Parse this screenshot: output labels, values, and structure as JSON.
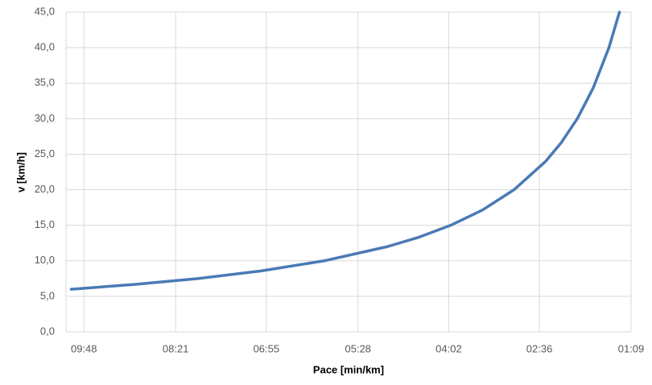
{
  "chart_data": {
    "type": "line",
    "x_label": "Pace [min/km]",
    "y_label": "v [km/h]",
    "x": [
      600,
      540,
      480,
      420,
      360,
      300,
      270,
      240,
      210,
      180,
      150,
      135,
      120,
      105,
      90,
      80
    ],
    "series": [
      {
        "name": "v",
        "color": "#4a7ab5",
        "values": [
          6,
          6.67,
          7.5,
          8.57,
          10,
          12,
          13.33,
          15,
          17.14,
          20,
          24,
          26.67,
          30,
          34.29,
          40,
          45
        ]
      }
    ],
    "xlim": [
      605,
      69
    ],
    "xticks": [
      {
        "value": 588,
        "label": "09:48"
      },
      {
        "value": 501,
        "label": "08:21"
      },
      {
        "value": 415,
        "label": "06:55"
      },
      {
        "value": 328,
        "label": "05:28"
      },
      {
        "value": 242,
        "label": "04:02"
      },
      {
        "value": 156,
        "label": "02:36"
      },
      {
        "value": 69,
        "label": "01:09"
      }
    ],
    "ylim": [
      0,
      45
    ],
    "yticks": [
      {
        "value": 0,
        "label": "0,0"
      },
      {
        "value": 5,
        "label": "5,0"
      },
      {
        "value": 10,
        "label": "10,0"
      },
      {
        "value": 15,
        "label": "15,0"
      },
      {
        "value": 20,
        "label": "20,0"
      },
      {
        "value": 25,
        "label": "25,0"
      },
      {
        "value": 30,
        "label": "30,0"
      },
      {
        "value": 35,
        "label": "35,0"
      },
      {
        "value": 40,
        "label": "40,0"
      },
      {
        "value": 45,
        "label": "45,0"
      }
    ],
    "grid": true
  }
}
